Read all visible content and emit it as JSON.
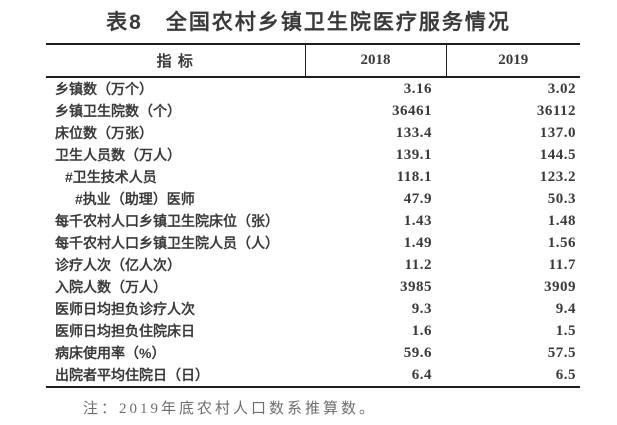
{
  "title": "表8　全国农村乡镇卫生院医疗服务情况",
  "table": {
    "header": {
      "indicator": "指 标",
      "y2018": "2018",
      "y2019": "2019"
    },
    "rows": [
      {
        "label": "乡镇数（万个）",
        "indent": 0,
        "v2018": "3.16",
        "v2019": "3.02"
      },
      {
        "label": "乡镇卫生院数（个）",
        "indent": 0,
        "v2018": "36461",
        "v2019": "36112"
      },
      {
        "label": "床位数（万张）",
        "indent": 0,
        "v2018": "133.4",
        "v2019": "137.0"
      },
      {
        "label": "卫生人员数（万人）",
        "indent": 0,
        "v2018": "139.1",
        "v2019": "144.5"
      },
      {
        "label": "#卫生技术人员",
        "indent": 1,
        "v2018": "118.1",
        "v2019": "123.2"
      },
      {
        "label": "#执业（助理）医师",
        "indent": 2,
        "v2018": "47.9",
        "v2019": "50.3"
      },
      {
        "label": "每千农村人口乡镇卫生院床位（张）",
        "indent": 0,
        "v2018": "1.43",
        "v2019": "1.48"
      },
      {
        "label": "每千农村人口乡镇卫生院人员（人）",
        "indent": 0,
        "v2018": "1.49",
        "v2019": "1.56"
      },
      {
        "label": "诊疗人次（亿人次）",
        "indent": 0,
        "v2018": "11.2",
        "v2019": "11.7"
      },
      {
        "label": "入院人数（万人）",
        "indent": 0,
        "v2018": "3985",
        "v2019": "3909"
      },
      {
        "label": "医师日均担负诊疗人次",
        "indent": 0,
        "v2018": "9.3",
        "v2019": "9.4"
      },
      {
        "label": "医师日均担负住院床日",
        "indent": 0,
        "v2018": "1.6",
        "v2019": "1.5"
      },
      {
        "label": "病床使用率（%）",
        "indent": 0,
        "v2018": "59.6",
        "v2019": "57.5"
      },
      {
        "label": "出院者平均住院日（日）",
        "indent": 0,
        "v2018": "6.4",
        "v2019": "6.5"
      }
    ]
  },
  "note": "注：2019年底农村人口数系推算数。",
  "colors": {
    "background": "#ffffff",
    "text": "#3a3a3a",
    "border": "#1d1d1d",
    "note_text": "#6e6e6e"
  }
}
